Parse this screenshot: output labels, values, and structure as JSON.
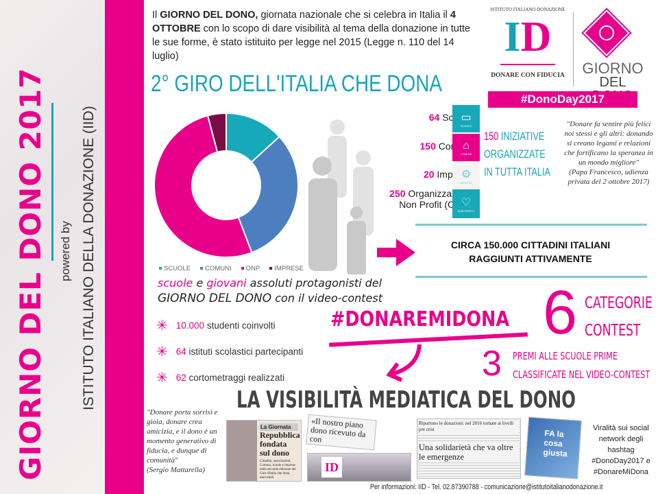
{
  "sidebar": {
    "title": "GIORNO DEL DONO 2017",
    "powered_by": "powered by",
    "organization": "ISTITUTO ITALIANO DELLA DONAZIONE (IID)"
  },
  "intro": {
    "p1": "Il ",
    "b1": "GIORNO DEL DONO,",
    "p2": " giornata nazionale che si celebra in Italia il ",
    "b2": "4 OTTOBRE",
    "p3": " con lo scopo di dare visibilità al tema della donazione in tutte le sue forme, è stato istituito per legge nel 2015 (Legge n. 110 del 14 luglio)"
  },
  "logos": {
    "iid_arc": "ISTITUTO ITALIANO DONAZIONE",
    "iid_letters": "ID",
    "iid_tagline": "DONARE CON FIDUCIA",
    "gdd_line1": "GIORNO",
    "gdd_line2": "DEL DONO",
    "hashtag": "#DonoDay2017"
  },
  "section_title": "2° GIRO DELL'ITALIA CHE DONA",
  "chart_data": {
    "type": "pie",
    "donut": true,
    "categories": [
      "SCUOLE",
      "COMUNI",
      "ONP",
      "IMPRESE"
    ],
    "values": [
      64,
      150,
      250,
      20
    ],
    "colors": [
      "#17a9b9",
      "#4d7fc0",
      "#e8008a",
      "#7a0c45"
    ],
    "legend_placement": "bottom"
  },
  "stats": [
    {
      "num": "64",
      "label": "Scuole",
      "icon": "book-icon",
      "icon_caption": "SCUOLE",
      "color": "#17a9b9"
    },
    {
      "num": "150",
      "label": "Comuni",
      "icon": "town-hall-icon",
      "icon_caption": "COMUNI",
      "color": "#e8008a"
    },
    {
      "num": "20",
      "label": "Imprese",
      "icon": "gears-icon",
      "icon_caption": "IMPRESE",
      "color": "#f4f4f4"
    },
    {
      "num": "250",
      "label": "Organizzazioni",
      "label2": "Non Profit (ONP)",
      "icon": "heart-icon",
      "icon_caption": "NON PROFIT",
      "color": "#17a9b9"
    }
  ],
  "iniziative": {
    "num": "150",
    "l1": " INIZIATIVE",
    "l2": "ORGANIZZATE",
    "l3": "IN TUTTA ITALIA"
  },
  "quote_pope": {
    "text": "\"Donare fa sentire più felici noi stessi e gli altri: donando si creano legami e relazioni che fortificano la speranza in un mondo migliore\"",
    "author": "(Papa Francesco, udienza privata del 2 ottobre 2017)"
  },
  "citizens": {
    "l1": "CIRCA 150.000 CITTADINI ITALIANI",
    "l2": "RAGGIUNTI ATTIVAMENTE"
  },
  "contest": {
    "w1": "scuole",
    "w2": " e ",
    "w3": "giovani",
    "w4": " assoluti protagonisti del",
    "line2a": "GIORNO DEL DONO",
    "line2b": " con il video-contest",
    "items": [
      {
        "num": "10.000",
        "text": " studenti coinvolti"
      },
      {
        "num": "64",
        "text": " istituti scolastici partecipanti"
      },
      {
        "num": "62",
        "text": " cortometraggi realizzati"
      }
    ],
    "hashtag": "#DONAREMIDONA",
    "categories_num": "6",
    "categories_l1": "CATEGORIE",
    "categories_l2": "CONTEST",
    "prizes_num": "3",
    "prizes_l1": "PREMI ALLE SCUOLE PRIME",
    "prizes_l2": "CLASSIFICATE NEL VIDEO-CONTEST"
  },
  "media": {
    "title": "LA VISIBILITÀ MEDIATICA DEL DONO",
    "quote": "\"Donare porta sorrisi e gioia, donare crea amicizia, e il dono è un momento generativo di fiducia, e dunque di comunità\"",
    "quote_author": "(Sergio Mattarella)",
    "clip1_kicker": "La Giornata",
    "clip1_head": "Repubblica fondata sul dono",
    "clip1_body": "Cittadini, associazioni, Comuni, scuole e imprese nella seconda edizione del Giro d'Italia che dona, mercoledì.",
    "clip2_head": "«Il nostro piano dono ricevuto da con",
    "clip3_top": "Ripartono le donazioni: nel 2016 tornate ai livelli pre crisi",
    "clip3_head": "Una solidarietà che va oltre le emergenze",
    "clip4_text": "FA la cosa giusta",
    "social": "Viralità sui social network degli hashtag #DonoDay2017 e #DonareMiDona"
  },
  "footer": "Per informazioni: IID - Tel. 02.87390788 - comunicazione@istitutoitalianodonazione.it"
}
